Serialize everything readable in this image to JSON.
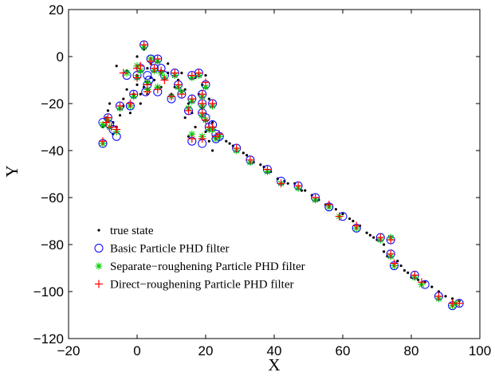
{
  "chart_data": {
    "type": "scatter",
    "title": "",
    "xlabel": "X",
    "ylabel": "Y",
    "xlim": [
      -20,
      100
    ],
    "ylim": [
      -120,
      20
    ],
    "xticks": [
      -20,
      0,
      20,
      40,
      60,
      80,
      100
    ],
    "yticks": [
      -120,
      -100,
      -80,
      -60,
      -40,
      -20,
      0,
      20
    ],
    "grid": false,
    "legend_position": "bottom-left",
    "series": [
      {
        "name": "true state",
        "marker": "dot",
        "color": "#000000",
        "points": [
          [
            -10,
            -30
          ],
          [
            -9,
            -26
          ],
          [
            -8.5,
            -23
          ],
          [
            -8,
            -20
          ],
          [
            -7,
            -28
          ],
          [
            -7,
            -33
          ],
          [
            -6,
            -30
          ],
          [
            -5,
            -25
          ],
          [
            -4,
            -21
          ],
          [
            -4,
            -18
          ],
          [
            -3,
            -14
          ],
          [
            -2,
            -24
          ],
          [
            -1,
            -16
          ],
          [
            0,
            -12
          ],
          [
            0,
            -8
          ],
          [
            1,
            -16
          ],
          [
            1,
            -20
          ],
          [
            2,
            -13
          ],
          [
            3,
            -16
          ],
          [
            3,
            -5
          ],
          [
            4,
            -9
          ],
          [
            5,
            -10
          ],
          [
            6,
            -13
          ],
          [
            7,
            -13
          ],
          [
            8,
            -9
          ],
          [
            9,
            -7
          ],
          [
            10,
            -16
          ],
          [
            11,
            -13
          ],
          [
            12,
            -10
          ],
          [
            13,
            -7
          ],
          [
            14,
            -14
          ],
          [
            15,
            -20
          ],
          [
            16,
            -24
          ],
          [
            17,
            -30
          ],
          [
            18,
            -16
          ],
          [
            19,
            -12
          ],
          [
            20,
            -32
          ],
          [
            21,
            -36
          ],
          [
            22,
            -40
          ],
          [
            22,
            -28
          ],
          [
            -6,
            -4
          ],
          [
            -3,
            -6
          ],
          [
            0,
            0
          ],
          [
            2,
            3
          ],
          [
            4,
            -3
          ],
          [
            7,
            -6
          ],
          [
            9,
            -3
          ],
          [
            11,
            -8
          ],
          [
            17,
            -9
          ],
          [
            20,
            -8
          ],
          [
            14,
            -26
          ],
          [
            15,
            -34
          ],
          [
            19,
            -22
          ],
          [
            21,
            -18
          ],
          [
            24,
            -34
          ],
          [
            26,
            -36
          ],
          [
            27,
            -37
          ],
          [
            28,
            -38
          ],
          [
            31,
            -41
          ],
          [
            32,
            -42
          ],
          [
            34,
            -45
          ],
          [
            36,
            -46
          ],
          [
            37,
            -47
          ],
          [
            39,
            -49
          ],
          [
            41,
            -52
          ],
          [
            43,
            -53
          ],
          [
            44,
            -54
          ],
          [
            46,
            -54
          ],
          [
            48,
            -57
          ],
          [
            49,
            -57
          ],
          [
            51,
            -59
          ],
          [
            53,
            -61
          ],
          [
            55,
            -63
          ],
          [
            56,
            -63
          ],
          [
            58,
            -65
          ],
          [
            60,
            -67
          ],
          [
            62,
            -69
          ],
          [
            63,
            -70
          ],
          [
            65,
            -72
          ],
          [
            67,
            -75
          ],
          [
            68,
            -76
          ],
          [
            69,
            -77
          ],
          [
            70,
            -78
          ],
          [
            72,
            -80
          ],
          [
            72,
            -83
          ],
          [
            73,
            -85
          ],
          [
            76,
            -87
          ],
          [
            77,
            -89
          ],
          [
            78,
            -91
          ],
          [
            79,
            -92
          ],
          [
            80,
            -94
          ],
          [
            82,
            -95
          ],
          [
            84,
            -96
          ],
          [
            86,
            -98
          ],
          [
            88,
            -100
          ],
          [
            90,
            -102
          ],
          [
            92,
            -103
          ],
          [
            94,
            -104
          ]
        ]
      },
      {
        "name": "Basic Particle PHD filter",
        "marker": "circle",
        "color": "#0000ff",
        "points": [
          [
            -10,
            -28
          ],
          [
            -10,
            -37
          ],
          [
            -8.5,
            -26
          ],
          [
            -8,
            -29
          ],
          [
            -7,
            -31
          ],
          [
            -6,
            -34
          ],
          [
            -5,
            -21
          ],
          [
            -3,
            -8
          ],
          [
            -2,
            -21
          ],
          [
            -1,
            -16
          ],
          [
            0,
            -8
          ],
          [
            1,
            -5
          ],
          [
            2,
            5
          ],
          [
            2.5,
            -15
          ],
          [
            3,
            -8
          ],
          [
            3,
            -12
          ],
          [
            3.5,
            -10
          ],
          [
            4,
            -1
          ],
          [
            5,
            -5
          ],
          [
            6,
            -1
          ],
          [
            6,
            -15
          ],
          [
            7,
            -5
          ],
          [
            8,
            -8
          ],
          [
            10,
            -18
          ],
          [
            11,
            -7
          ],
          [
            12,
            -12
          ],
          [
            13,
            -16
          ],
          [
            15,
            -23
          ],
          [
            16,
            -18
          ],
          [
            16,
            -8
          ],
          [
            16,
            -36
          ],
          [
            18,
            -7
          ],
          [
            19,
            -37
          ],
          [
            19,
            -24
          ],
          [
            19,
            -20
          ],
          [
            19,
            -16
          ],
          [
            20,
            -12
          ],
          [
            20,
            -26
          ],
          [
            21,
            -30
          ],
          [
            22,
            -20
          ],
          [
            22,
            -29
          ],
          [
            23,
            -35
          ],
          [
            23,
            -33
          ],
          [
            24,
            -34
          ],
          [
            29,
            -39
          ],
          [
            33,
            -44
          ],
          [
            38,
            -48
          ],
          [
            42,
            -53
          ],
          [
            47,
            -55
          ],
          [
            52,
            -60
          ],
          [
            56,
            -64
          ],
          [
            60,
            -68
          ],
          [
            64,
            -73
          ],
          [
            71,
            -77
          ],
          [
            74,
            -78
          ],
          [
            74,
            -84
          ],
          [
            75,
            -89
          ],
          [
            81,
            -93
          ],
          [
            84,
            -97
          ],
          [
            88,
            -102
          ],
          [
            92,
            -106
          ],
          [
            94,
            -105
          ]
        ]
      },
      {
        "name": "Separate−roughening Particle PHD filter",
        "marker": "star",
        "color": "#00cc00",
        "points": [
          [
            -10,
            -37
          ],
          [
            -10,
            -29
          ],
          [
            -8.5,
            -27
          ],
          [
            -8,
            -30
          ],
          [
            -6,
            -32
          ],
          [
            -5,
            -22
          ],
          [
            -3,
            -7
          ],
          [
            -2,
            -21
          ],
          [
            -1,
            -17
          ],
          [
            0,
            -4
          ],
          [
            0,
            -9
          ],
          [
            1,
            -6
          ],
          [
            2,
            4
          ],
          [
            3,
            -11
          ],
          [
            3,
            -14
          ],
          [
            4,
            -1
          ],
          [
            5,
            -6
          ],
          [
            6,
            -2
          ],
          [
            6,
            -13
          ],
          [
            7,
            -7
          ],
          [
            8,
            -9
          ],
          [
            10,
            -17
          ],
          [
            11,
            -8
          ],
          [
            12,
            -13
          ],
          [
            13,
            -15
          ],
          [
            15,
            -22
          ],
          [
            16,
            -33
          ],
          [
            16,
            -19
          ],
          [
            16,
            -9
          ],
          [
            18,
            -8
          ],
          [
            19,
            -34
          ],
          [
            19,
            -25
          ],
          [
            19,
            -21
          ],
          [
            19,
            -17
          ],
          [
            20,
            -13
          ],
          [
            20,
            -27
          ],
          [
            21,
            -31
          ],
          [
            22,
            -21
          ],
          [
            22,
            -31
          ],
          [
            23,
            -35
          ],
          [
            24,
            -34
          ],
          [
            29,
            -40
          ],
          [
            33,
            -45
          ],
          [
            38,
            -49
          ],
          [
            42,
            -54
          ],
          [
            47,
            -56
          ],
          [
            52,
            -61
          ],
          [
            56,
            -64
          ],
          [
            59,
            -68
          ],
          [
            64,
            -73
          ],
          [
            71,
            -78
          ],
          [
            74,
            -77
          ],
          [
            74,
            -85
          ],
          [
            75,
            -89
          ],
          [
            81,
            -94
          ],
          [
            83,
            -97
          ],
          [
            88,
            -103
          ],
          [
            92,
            -106
          ],
          [
            93,
            -105
          ]
        ]
      },
      {
        "name": "Direct−roughening Particle PHD filter",
        "marker": "plus",
        "color": "#ff0000",
        "points": [
          [
            -10,
            -36
          ],
          [
            -9,
            -28
          ],
          [
            -8.5,
            -26
          ],
          [
            -7.5,
            -30
          ],
          [
            -6,
            -31
          ],
          [
            -5,
            -21
          ],
          [
            -4,
            -7
          ],
          [
            -2,
            -20
          ],
          [
            -1,
            -16
          ],
          [
            0,
            -5
          ],
          [
            0,
            -9
          ],
          [
            1,
            -4
          ],
          [
            2,
            5
          ],
          [
            3,
            -12
          ],
          [
            3,
            -15
          ],
          [
            4,
            -2
          ],
          [
            5,
            -5
          ],
          [
            6,
            -1
          ],
          [
            6,
            -14
          ],
          [
            7,
            -6
          ],
          [
            8,
            -10
          ],
          [
            10,
            -17
          ],
          [
            11,
            -7
          ],
          [
            12,
            -12
          ],
          [
            13,
            -16
          ],
          [
            15,
            -23
          ],
          [
            16,
            -35
          ],
          [
            16,
            -18
          ],
          [
            16,
            -8
          ],
          [
            18,
            -7
          ],
          [
            19,
            -35
          ],
          [
            19,
            -24
          ],
          [
            19,
            -20
          ],
          [
            19,
            -16
          ],
          [
            20,
            -11
          ],
          [
            20,
            -27
          ],
          [
            21,
            -30
          ],
          [
            22,
            -20
          ],
          [
            22,
            -30
          ],
          [
            23,
            -34
          ],
          [
            24,
            -33
          ],
          [
            29,
            -39
          ],
          [
            33,
            -44
          ],
          [
            38,
            -48
          ],
          [
            42,
            -54
          ],
          [
            47,
            -55
          ],
          [
            52,
            -60
          ],
          [
            56,
            -63
          ],
          [
            59,
            -68
          ],
          [
            64,
            -72
          ],
          [
            71,
            -77
          ],
          [
            74,
            -78
          ],
          [
            74,
            -84
          ],
          [
            75,
            -88
          ],
          [
            81,
            -93
          ],
          [
            83,
            -96
          ],
          [
            88,
            -102
          ],
          [
            92,
            -105
          ],
          [
            94,
            -105
          ]
        ]
      }
    ]
  }
}
